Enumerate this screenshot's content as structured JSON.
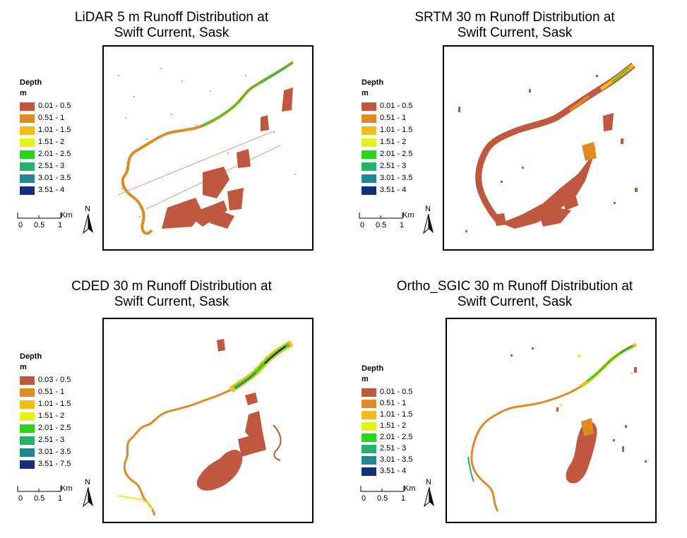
{
  "colors": {
    "c1": "#c0583f",
    "c2": "#e08a24",
    "c3": "#f0bd1c",
    "c4": "#e4f21a",
    "c5": "#28d41e",
    "c6": "#26b36e",
    "c7": "#1e8791",
    "c8": "#162d7a"
  },
  "panels": [
    {
      "title_line1": "LiDAR 5 m Runoff Distribution at",
      "title_line2": "Swift Current, Sask",
      "legend_title": "Depth",
      "legend_unit": "m",
      "classes": [
        "0.01 - 0.5",
        "0.51 - 1",
        "1.01 - 1.5",
        "1.51 - 2",
        "2.01 - 2.5",
        "2.51 - 3",
        "3.01 - 3.5",
        "3.51 - 4"
      ],
      "scale_unit": "Km",
      "scale_ticks": [
        "0",
        "0.5",
        "1"
      ],
      "north": "N"
    },
    {
      "title_line1": "SRTM 30 m Runoff Distribution at",
      "title_line2": "Swift Current, Sask",
      "legend_title": "Depth",
      "legend_unit": "m",
      "classes": [
        "0.01 - 0.5",
        "0.51 - 1",
        "1.01 - 1.5",
        "1.51 - 2",
        "2.01 - 2.5",
        "2.51 - 3",
        "3.01 - 3.5",
        "3.51 - 4"
      ],
      "scale_unit": "Km",
      "scale_ticks": [
        "0",
        "0.5",
        "1"
      ],
      "north": "N"
    },
    {
      "title_line1": "CDED 30 m Runoff Distribution at",
      "title_line2": "Swift Current, Sask",
      "legend_title": "Depth",
      "legend_unit": "m",
      "classes": [
        "0.03 - 0.5",
        "0.51 - 1",
        "1.01 - 1.5",
        "1.51 - 2",
        "2.01 - 2.5",
        "2.51 - 3",
        "3.01 - 3.5",
        "3.51 - 7.5"
      ],
      "scale_unit": "Km",
      "scale_ticks": [
        "0",
        "0.5",
        "1"
      ],
      "north": "N"
    },
    {
      "title_line1": "Ortho_SGIC 30 m Runoff Distribution at",
      "title_line2": "Swift Current, Sask",
      "legend_title": "Depth",
      "legend_unit": "m",
      "classes": [
        "0.01 - 0.5",
        "0.51 - 1",
        "1.01 - 1.5",
        "1.51 - 2",
        "2.01 - 2.5",
        "2.51 - 3",
        "3.01 - 3.5",
        "3.51 - 4"
      ],
      "scale_unit": "Km",
      "scale_ticks": [
        "0",
        "0.5",
        "1"
      ],
      "north": "N"
    }
  ]
}
